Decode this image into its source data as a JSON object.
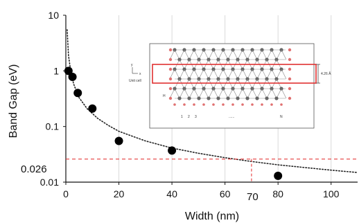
{
  "colors": {
    "reference": "#e63b3b",
    "points": "#000000",
    "grid": "#d9d9d9",
    "axis": "#111111",
    "ribbon_line": "#888888",
    "ribbon_atom": "#666666",
    "edge_atom": "#e07070",
    "highlight_box": "#e03030"
  },
  "chart_data": {
    "type": "scatter",
    "xlabel": "Width (nm)",
    "ylabel": "Band Gap (eV)",
    "xlim": [
      0,
      110
    ],
    "ylim": [
      0.01,
      10
    ],
    "yscale": "log",
    "grid": "vertical",
    "x_ticks": [
      "0",
      "20",
      "40",
      "60",
      "80",
      "100"
    ],
    "y_ticks": [
      "10",
      "1",
      "0.1",
      "0.01"
    ],
    "series": [
      {
        "points": [
          {
            "x": 1.0,
            "y": 1.0
          },
          {
            "x": 2.5,
            "y": 0.78
          },
          {
            "x": 4.5,
            "y": 0.4
          },
          {
            "x": 10.0,
            "y": 0.21
          },
          {
            "x": 20.0,
            "y": 0.055
          },
          {
            "x": 40.0,
            "y": 0.037
          },
          {
            "x": 80.0,
            "y": 0.013
          }
        ]
      }
    ],
    "fit_curve": {
      "style": "dotted",
      "x": [
        0.5,
        1,
        2,
        3,
        5,
        8,
        12,
        16,
        20,
        30,
        40,
        50,
        60,
        70,
        80,
        90,
        100,
        110
      ],
      "y": [
        5.5,
        1.9,
        0.86,
        0.57,
        0.33,
        0.21,
        0.14,
        0.105,
        0.082,
        0.055,
        0.041,
        0.033,
        0.0275,
        0.0235,
        0.0205,
        0.0183,
        0.0164,
        0.0149
      ]
    },
    "reference": {
      "y_value": 0.026,
      "y_label": "0.026",
      "x_value": 70,
      "x_label": "70"
    },
    "inset": {
      "y_axis_label": "y",
      "x_axis_label": "x",
      "unit_cell_label": "Unit cell",
      "h_label": "H",
      "width_label": "4.26 Å",
      "index_labels": [
        "1",
        "2",
        "3"
      ],
      "ellipsis": "......",
      "end_label": "N"
    }
  }
}
